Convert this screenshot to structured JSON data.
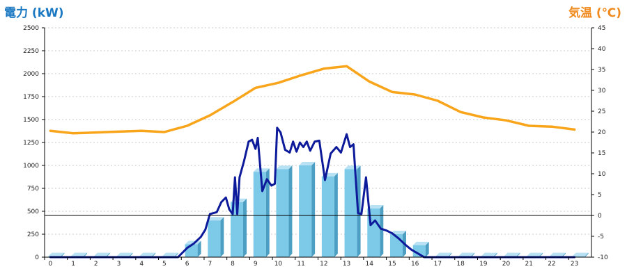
{
  "chart_data": {
    "type": "bar+line",
    "left_axis": {
      "label": "電力 (kW)",
      "color": "#1a78c2",
      "ylim": [
        0,
        2500
      ],
      "ticks": [
        0,
        250,
        500,
        750,
        1000,
        1250,
        1500,
        1750,
        2000,
        2250,
        2500
      ]
    },
    "right_axis": {
      "label": "気温 (℃)",
      "color": "#f08a1e",
      "ylim": [
        -10,
        45
      ],
      "ticks": [
        -10,
        -5,
        0,
        5,
        10,
        15,
        20,
        25,
        30,
        35,
        40,
        45
      ]
    },
    "categories": [
      "0",
      "1",
      "2",
      "3",
      "4",
      "5",
      "6",
      "7",
      "8",
      "9",
      "10",
      "11",
      "12",
      "13",
      "14",
      "15",
      "16",
      "17",
      "18",
      "19",
      "20",
      "21",
      "22",
      "23"
    ],
    "series": [
      {
        "kind": "bar",
        "axis": "left",
        "color": "#7dc9e8",
        "values": [
          10,
          10,
          10,
          10,
          10,
          10,
          140,
          400,
          600,
          930,
          960,
          1000,
          880,
          960,
          530,
          250,
          130,
          10,
          10,
          10,
          10,
          10,
          10,
          10
        ]
      },
      {
        "kind": "line",
        "axis": "left",
        "color": "#0d1a9a",
        "points": [
          [
            0,
            0
          ],
          [
            5.6,
            0
          ],
          [
            6,
            100
          ],
          [
            6.3,
            150
          ],
          [
            6.6,
            220
          ],
          [
            6.8,
            300
          ],
          [
            7,
            470
          ],
          [
            7.3,
            490
          ],
          [
            7.5,
            600
          ],
          [
            7.7,
            650
          ],
          [
            7.85,
            520
          ],
          [
            8,
            470
          ],
          [
            8.1,
            870
          ],
          [
            8.2,
            470
          ],
          [
            8.3,
            870
          ],
          [
            8.5,
            1050
          ],
          [
            8.7,
            1260
          ],
          [
            8.85,
            1280
          ],
          [
            9,
            1180
          ],
          [
            9.1,
            1300
          ],
          [
            9.3,
            720
          ],
          [
            9.5,
            850
          ],
          [
            9.7,
            780
          ],
          [
            9.85,
            800
          ],
          [
            9.95,
            1410
          ],
          [
            10.1,
            1360
          ],
          [
            10.3,
            1170
          ],
          [
            10.5,
            1140
          ],
          [
            10.65,
            1260
          ],
          [
            10.8,
            1150
          ],
          [
            10.95,
            1250
          ],
          [
            11.1,
            1200
          ],
          [
            11.25,
            1260
          ],
          [
            11.4,
            1160
          ],
          [
            11.6,
            1260
          ],
          [
            11.8,
            1270
          ],
          [
            12.05,
            840
          ],
          [
            12.3,
            1130
          ],
          [
            12.55,
            1200
          ],
          [
            12.75,
            1140
          ],
          [
            13,
            1340
          ],
          [
            13.15,
            1200
          ],
          [
            13.3,
            1230
          ],
          [
            13.5,
            480
          ],
          [
            13.65,
            470
          ],
          [
            13.85,
            870
          ],
          [
            14.05,
            350
          ],
          [
            14.25,
            400
          ],
          [
            14.5,
            310
          ],
          [
            14.75,
            290
          ],
          [
            15,
            260
          ],
          [
            15.3,
            200
          ],
          [
            15.6,
            130
          ],
          [
            15.85,
            80
          ],
          [
            16.2,
            30
          ],
          [
            16.4,
            0
          ],
          [
            23,
            0
          ]
        ]
      },
      {
        "kind": "line",
        "axis": "right",
        "color": "#f8a51c",
        "values": [
          20.3,
          19.7,
          19.9,
          20.1,
          20.3,
          20.0,
          21.5,
          24.0,
          27.2,
          30.6,
          31.8,
          33.6,
          35.2,
          35.8,
          32.1,
          29.6,
          29.0,
          27.5,
          24.8,
          23.5,
          22.8,
          21.5,
          21.3,
          20.6
        ]
      }
    ],
    "grid": "horizontal dashed",
    "zero_line_right_axis": true
  }
}
